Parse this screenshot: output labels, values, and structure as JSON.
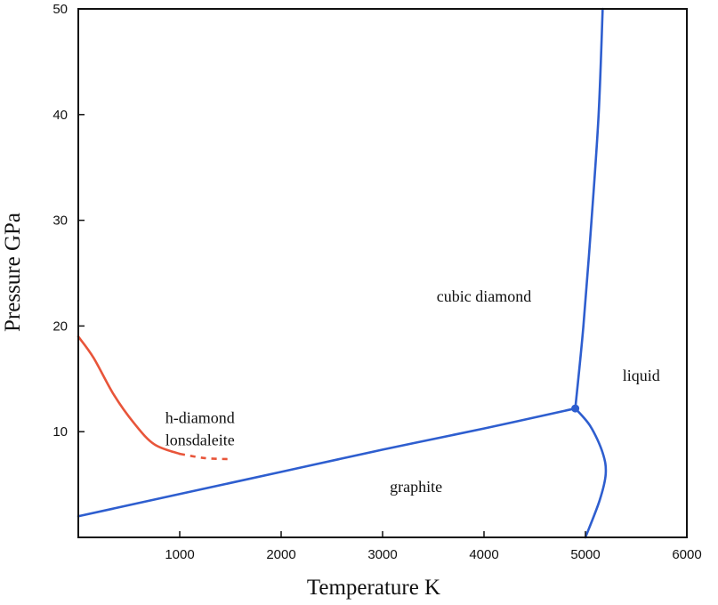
{
  "chart_data": {
    "type": "line",
    "xlabel": "Temperature K",
    "ylabel": "Pressure GPa",
    "xlim": [
      0,
      6000
    ],
    "ylim": [
      0,
      50
    ],
    "xticks": [
      1000,
      2000,
      3000,
      4000,
      5000,
      6000
    ],
    "yticks": [
      10,
      20,
      30,
      40,
      50
    ],
    "grid": false,
    "region_labels": [
      {
        "id": "cubic-diamond",
        "text": "cubic diamond",
        "x": 4000,
        "y": 22.3
      },
      {
        "id": "liquid",
        "text": "liquid",
        "x": 5550,
        "y": 14.8
      },
      {
        "id": "h-diamond",
        "text": "h-diamond",
        "x": 1200,
        "y": 10.8
      },
      {
        "id": "lonsdaleite",
        "text": "lonsdaleite",
        "x": 1200,
        "y": 8.7
      },
      {
        "id": "graphite",
        "text": "graphite",
        "x": 3330,
        "y": 4.3
      }
    ],
    "series": [
      {
        "id": "graphite-diamond",
        "color": "#2e5ecf",
        "style": "solid",
        "points": [
          [
            0,
            2
          ],
          [
            1000,
            4.1
          ],
          [
            2000,
            6.2
          ],
          [
            3000,
            8.3
          ],
          [
            4000,
            10.3
          ],
          [
            4900,
            12.2
          ]
        ]
      },
      {
        "id": "diamond-melting",
        "color": "#2e5ecf",
        "style": "solid",
        "points": [
          [
            4900,
            12.2
          ],
          [
            4980,
            20
          ],
          [
            5060,
            30
          ],
          [
            5130,
            40
          ],
          [
            5170,
            50
          ]
        ]
      },
      {
        "id": "graphite-melting",
        "color": "#2e5ecf",
        "style": "solid",
        "points": [
          [
            4900,
            12.2
          ],
          [
            5050,
            10.5
          ],
          [
            5170,
            8
          ],
          [
            5200,
            6
          ],
          [
            5140,
            3.5
          ],
          [
            5000,
            0
          ]
        ]
      },
      {
        "id": "h-diamond-boundary",
        "color": "#e8553a",
        "style": "solid",
        "points": [
          [
            0,
            19
          ],
          [
            150,
            17
          ],
          [
            350,
            13.5
          ],
          [
            550,
            10.8
          ],
          [
            750,
            8.8
          ],
          [
            1000,
            7.9
          ]
        ]
      },
      {
        "id": "h-diamond-boundary-extension",
        "color": "#e8553a",
        "style": "dashed",
        "points": [
          [
            1000,
            7.9
          ],
          [
            1250,
            7.5
          ],
          [
            1500,
            7.4
          ]
        ]
      }
    ],
    "markers": [
      {
        "id": "triple-point",
        "x": 4900,
        "y": 12.2,
        "color": "#2e5ecf"
      }
    ]
  }
}
